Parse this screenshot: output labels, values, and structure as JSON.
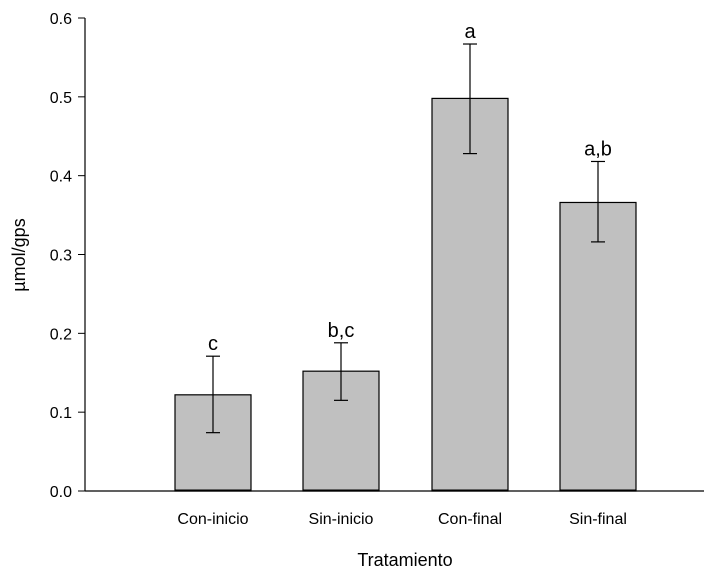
{
  "chart_data": {
    "type": "bar",
    "title": "",
    "xlabel": "Tratamiento",
    "ylabel": "µmol/gps",
    "categories": [
      "Con-inicio",
      "Sin-inicio",
      "Con-final",
      "Sin-final"
    ],
    "series": [
      {
        "values": [
          0.122,
          0.152,
          0.498,
          0.366
        ],
        "error_low": [
          0.074,
          0.115,
          0.428,
          0.316
        ],
        "error_high": [
          0.171,
          0.188,
          0.567,
          0.418
        ],
        "significance_labels": [
          "c",
          "b,c",
          "a",
          "a,b"
        ]
      }
    ],
    "ylim": [
      0,
      0.6
    ],
    "yticks": [
      0.0,
      0.1,
      0.2,
      0.3,
      0.4,
      0.5,
      0.6
    ],
    "ytick_labels": [
      "0.0",
      "0.1",
      "0.2",
      "0.3",
      "0.4",
      "0.5",
      "0.6"
    ],
    "grid": false,
    "bar_color": "#c0c0c0"
  }
}
